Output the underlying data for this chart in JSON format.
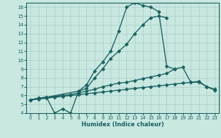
{
  "title": "",
  "xlabel": "Humidex (Indice chaleur)",
  "bg_color": "#c8e8e0",
  "grid_color": "#a8ccc8",
  "line_color": "#1a6060",
  "xlim": [
    -0.5,
    23.5
  ],
  "ylim": [
    4,
    16.5
  ],
  "xticks": [
    0,
    1,
    2,
    3,
    4,
    5,
    6,
    7,
    8,
    9,
    10,
    11,
    12,
    13,
    14,
    15,
    16,
    17,
    18,
    19,
    20,
    21,
    22,
    23
  ],
  "yticks": [
    4,
    5,
    6,
    7,
    8,
    9,
    10,
    11,
    12,
    13,
    14,
    15,
    16
  ],
  "series1_x": [
    0,
    1,
    2,
    3,
    4,
    5,
    6,
    7,
    8,
    9,
    10,
    11,
    12,
    13,
    14,
    15,
    16,
    17,
    18,
    19,
    20,
    21,
    22,
    23
  ],
  "series1_y": [
    5.5,
    5.7,
    5.8,
    4.0,
    4.5,
    4.0,
    6.5,
    7.2,
    8.8,
    9.8,
    11.0,
    13.3,
    16.0,
    16.5,
    16.2,
    16.0,
    15.5,
    9.3,
    9.0,
    null,
    null,
    null,
    null,
    null
  ],
  "series2_x": [
    0,
    1,
    2,
    6,
    7,
    8,
    9,
    10,
    11,
    12,
    13,
    14,
    15,
    16,
    17
  ],
  "series2_y": [
    5.5,
    5.7,
    5.8,
    6.5,
    6.8,
    8.0,
    9.0,
    10.2,
    11.0,
    11.8,
    13.0,
    14.0,
    14.8,
    15.0,
    14.8
  ],
  "series3_x": [
    0,
    1,
    2,
    3,
    4,
    5,
    6,
    7,
    8,
    9,
    10,
    11,
    12,
    13,
    14,
    15,
    16,
    17,
    18,
    19,
    20,
    21,
    22,
    23
  ],
  "series3_y": [
    5.5,
    5.7,
    5.8,
    5.9,
    6.0,
    6.1,
    6.3,
    6.5,
    6.7,
    7.0,
    7.2,
    7.4,
    7.5,
    7.7,
    7.9,
    8.1,
    8.3,
    8.5,
    9.0,
    9.2,
    7.5,
    7.5,
    7.0,
    6.7
  ],
  "series4_x": [
    0,
    1,
    2,
    3,
    4,
    5,
    6,
    7,
    8,
    9,
    10,
    11,
    12,
    13,
    14,
    15,
    16,
    17,
    18,
    19,
    20,
    21,
    22,
    23
  ],
  "series4_y": [
    5.5,
    5.6,
    5.7,
    5.8,
    5.9,
    6.0,
    6.1,
    6.2,
    6.3,
    6.4,
    6.5,
    6.6,
    6.7,
    6.8,
    6.9,
    7.0,
    7.1,
    7.2,
    7.3,
    7.4,
    7.5,
    7.6,
    7.0,
    6.6
  ]
}
